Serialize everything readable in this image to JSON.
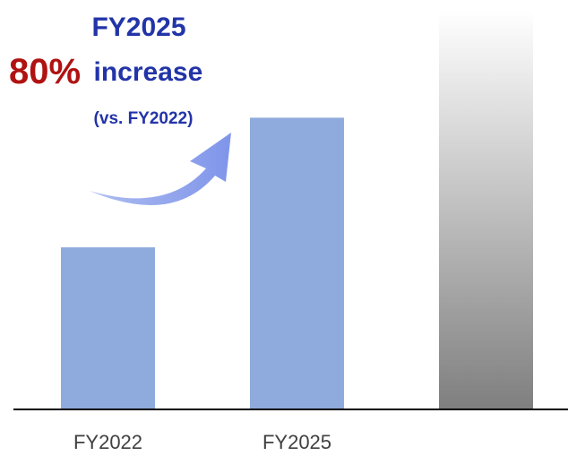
{
  "chart_data": {
    "type": "bar",
    "annotations": {
      "headline": "FY2025",
      "percent": "80%",
      "increase": "increase",
      "comparison": "(vs. FY2022)"
    },
    "categories": [
      "FY2022",
      "FY2025",
      null
    ],
    "values": [
      100,
      180,
      246
    ],
    "colors": [
      "#8faadc",
      "#8faadc",
      {
        "from": "#ffffff",
        "to": "#7f7f7f"
      }
    ]
  }
}
